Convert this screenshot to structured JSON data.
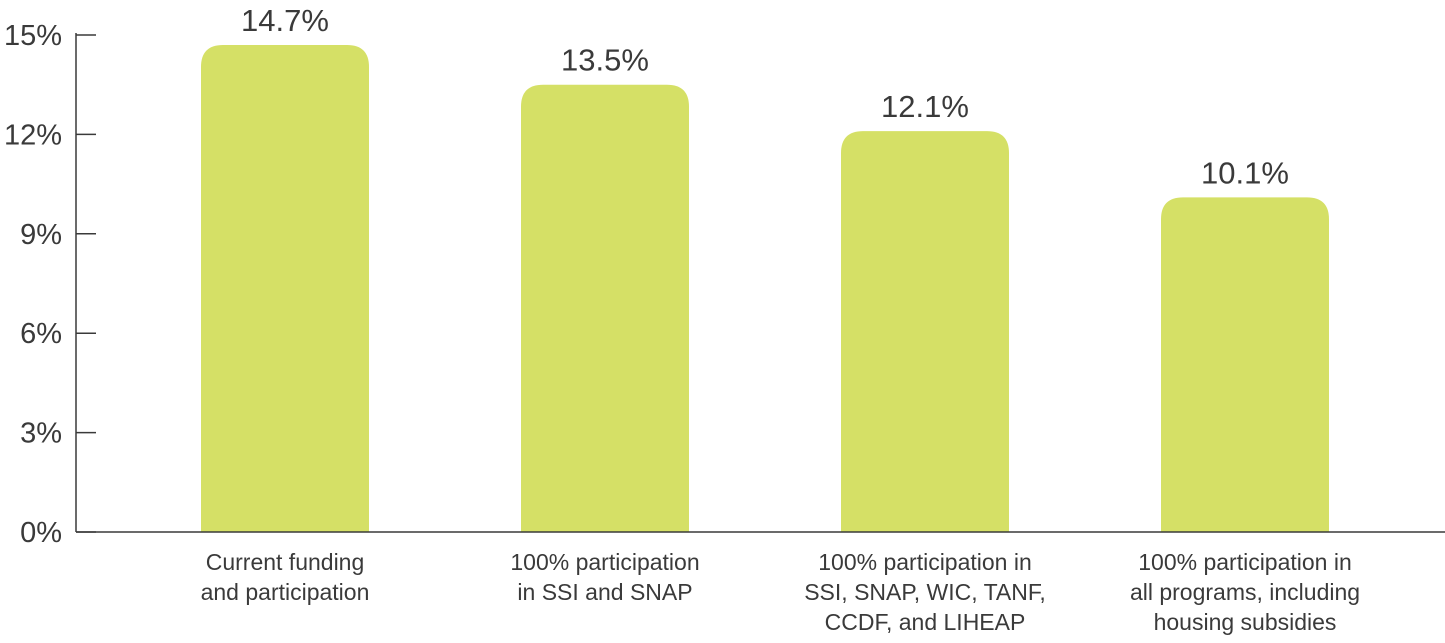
{
  "chart_data": {
    "type": "bar",
    "title": "",
    "xlabel": "",
    "ylabel": "",
    "ylim": [
      0,
      15
    ],
    "yticks": [
      0,
      3,
      6,
      9,
      12,
      15
    ],
    "ytick_labels": [
      "0%",
      "3%",
      "6%",
      "9%",
      "12%",
      "15%"
    ],
    "grid": false,
    "categories": [
      [
        "Current funding",
        "and participation"
      ],
      [
        "100% participation",
        "in SSI and SNAP"
      ],
      [
        "100% participation in",
        "SSI, SNAP, WIC, TANF,",
        "CCDF, and LIHEAP"
      ],
      [
        "100% participation in",
        "all programs, including",
        "housing subsidies"
      ]
    ],
    "values": [
      14.7,
      13.5,
      12.1,
      10.1
    ],
    "value_labels": [
      "14.7%",
      "13.5%",
      "12.1%",
      "10.1%"
    ],
    "bar_color": "#d5e066",
    "axis_color": "#3a3a3a"
  }
}
